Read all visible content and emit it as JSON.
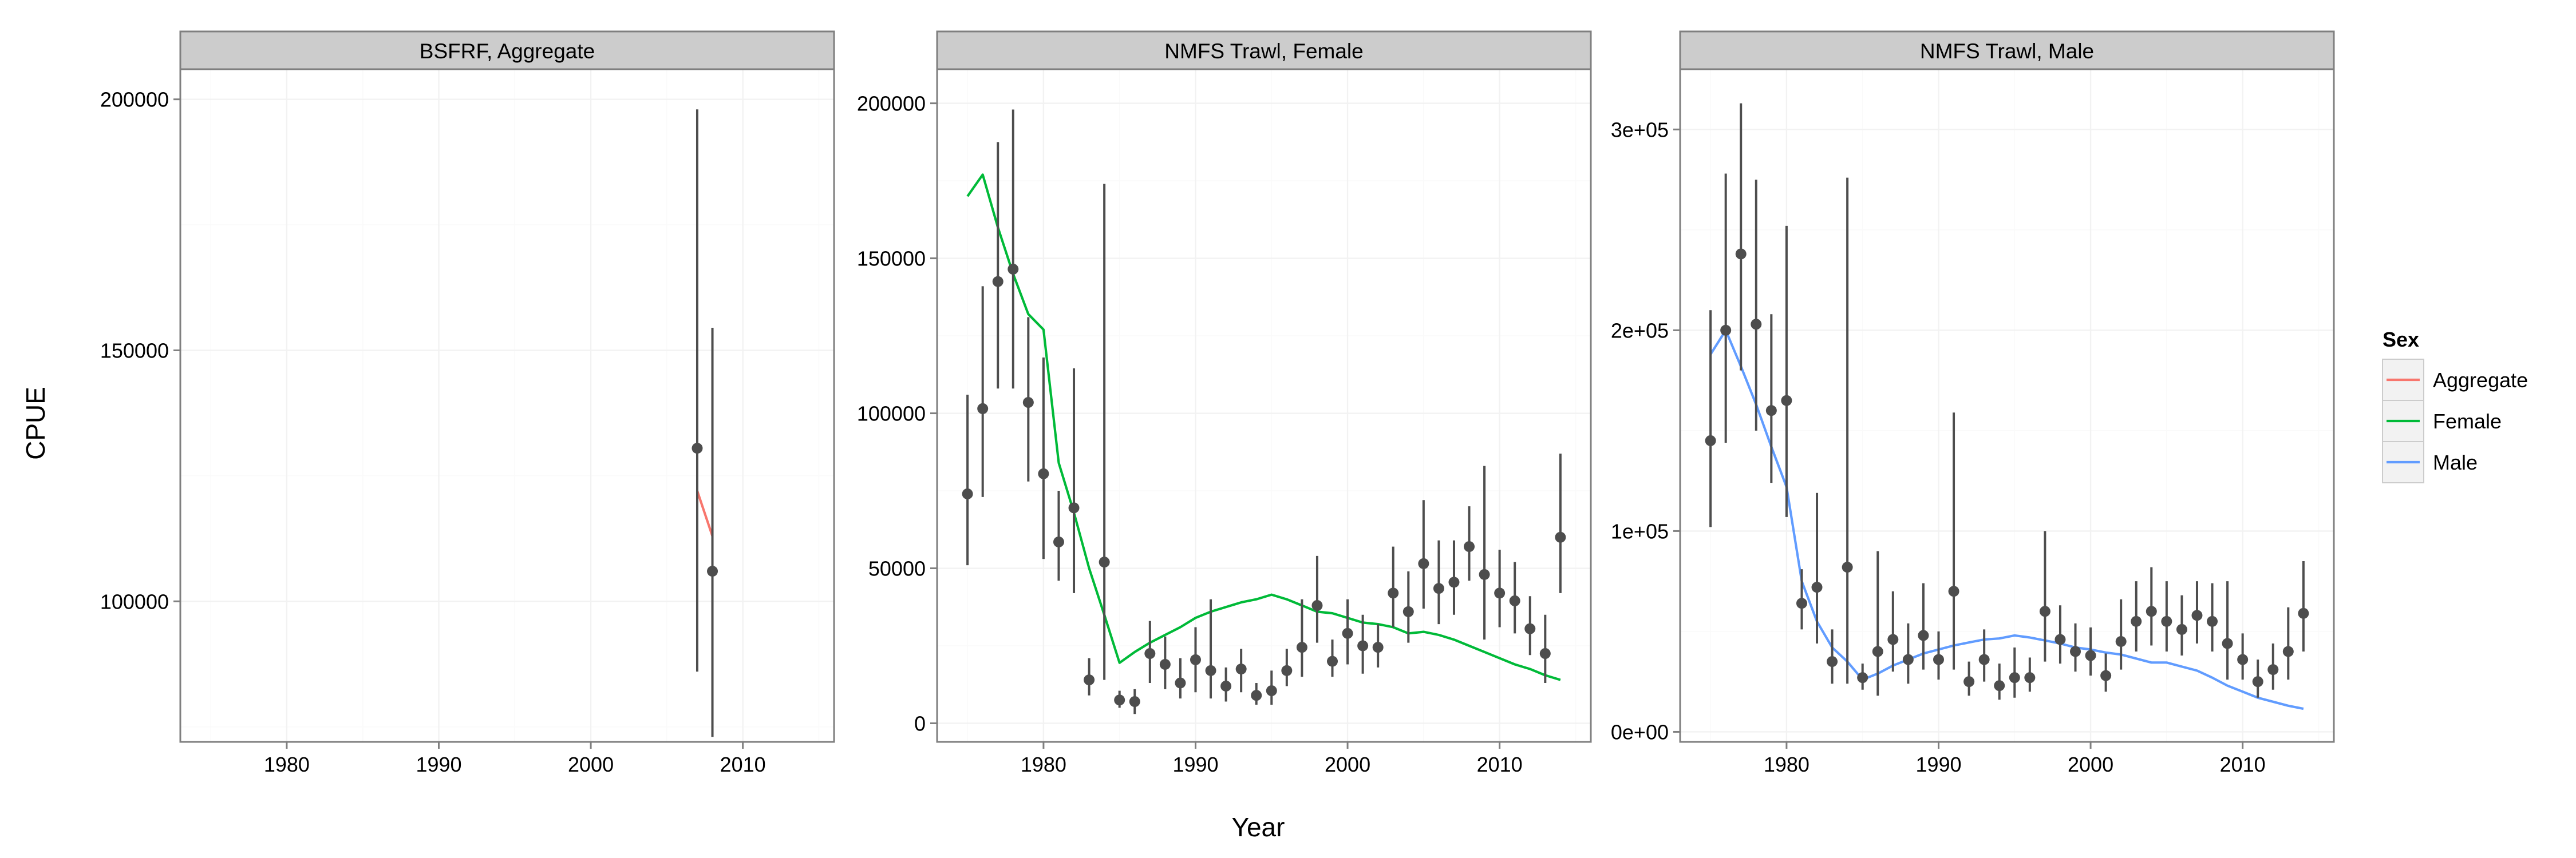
{
  "chart_data": {
    "type": "line",
    "xlabel": "Year",
    "ylabel": "CPUE",
    "legend": {
      "title": "Sex",
      "placement": "right",
      "entries": [
        {
          "name": "Aggregate",
          "color": "#F8766D"
        },
        {
          "name": "Female",
          "color": "#00BA38"
        },
        {
          "name": "Male",
          "color": "#619CFF"
        }
      ]
    },
    "facets": [
      {
        "strip": "BSFRF, Aggregate",
        "line_color": "#F8766D",
        "xlim": [
          1973,
          2016
        ],
        "ylim": [
          72000,
          206000
        ],
        "x_ticks": [
          1980,
          1990,
          2000,
          2010
        ],
        "x_tick_labels": [
          "1980",
          "1990",
          "2000",
          "2010"
        ],
        "y_ticks": [
          100000,
          150000,
          200000
        ],
        "y_tick_labels": [
          "100000",
          "150000",
          "200000"
        ],
        "observed": [
          {
            "x": 2007,
            "y": 130500,
            "lo": 86000,
            "hi": 198000
          },
          {
            "x": 2008,
            "y": 106000,
            "lo": 73000,
            "hi": 154500
          }
        ],
        "predicted": [
          {
            "x": 2007,
            "y": 122000
          },
          {
            "x": 2008,
            "y": 113000
          }
        ]
      },
      {
        "strip": "NMFS Trawl, Female",
        "line_color": "#00BA38",
        "xlim": [
          1973,
          2016
        ],
        "ylim": [
          -6000,
          211000
        ],
        "x_ticks": [
          1980,
          1990,
          2000,
          2010
        ],
        "x_tick_labels": [
          "1980",
          "1990",
          "2000",
          "2010"
        ],
        "y_ticks": [
          0,
          50000,
          100000,
          150000,
          200000
        ],
        "y_tick_labels": [
          "0",
          "50000",
          "100000",
          "150000",
          "200000"
        ],
        "observed": [
          {
            "x": 1975,
            "y": 74000,
            "lo": 51000,
            "hi": 106000
          },
          {
            "x": 1976,
            "y": 101500,
            "lo": 73000,
            "hi": 141000
          },
          {
            "x": 1977,
            "y": 142500,
            "lo": 108000,
            "hi": 187500
          },
          {
            "x": 1978,
            "y": 146500,
            "lo": 108000,
            "hi": 198000
          },
          {
            "x": 1979,
            "y": 103500,
            "lo": 78000,
            "hi": 131000
          },
          {
            "x": 1980,
            "y": 80500,
            "lo": 53000,
            "hi": 118000
          },
          {
            "x": 1981,
            "y": 58500,
            "lo": 46000,
            "hi": 75000
          },
          {
            "x": 1982,
            "y": 69500,
            "lo": 42000,
            "hi": 114500
          },
          {
            "x": 1983,
            "y": 14000,
            "lo": 9000,
            "hi": 21000
          },
          {
            "x": 1984,
            "y": 52000,
            "lo": 14000,
            "hi": 174000
          },
          {
            "x": 1985,
            "y": 7500,
            "lo": 5000,
            "hi": 10500
          },
          {
            "x": 1986,
            "y": 7000,
            "lo": 3000,
            "hi": 11000
          },
          {
            "x": 1987,
            "y": 22500,
            "lo": 13000,
            "hi": 33000
          },
          {
            "x": 1988,
            "y": 19000,
            "lo": 11000,
            "hi": 28000
          },
          {
            "x": 1989,
            "y": 13000,
            "lo": 8000,
            "hi": 21000
          },
          {
            "x": 1990,
            "y": 20500,
            "lo": 10000,
            "hi": 31000
          },
          {
            "x": 1991,
            "y": 17000,
            "lo": 8000,
            "hi": 40000
          },
          {
            "x": 1992,
            "y": 12000,
            "lo": 7000,
            "hi": 18000
          },
          {
            "x": 1993,
            "y": 17500,
            "lo": 10000,
            "hi": 24000
          },
          {
            "x": 1994,
            "y": 9000,
            "lo": 6000,
            "hi": 13000
          },
          {
            "x": 1995,
            "y": 10500,
            "lo": 6000,
            "hi": 17000
          },
          {
            "x": 1996,
            "y": 17000,
            "lo": 12000,
            "hi": 24000
          },
          {
            "x": 1997,
            "y": 24500,
            "lo": 15000,
            "hi": 40000
          },
          {
            "x": 1998,
            "y": 38000,
            "lo": 26000,
            "hi": 54000
          },
          {
            "x": 1999,
            "y": 20000,
            "lo": 15000,
            "hi": 27000
          },
          {
            "x": 2000,
            "y": 29000,
            "lo": 19000,
            "hi": 40000
          },
          {
            "x": 2001,
            "y": 25000,
            "lo": 16000,
            "hi": 35000
          },
          {
            "x": 2002,
            "y": 24500,
            "lo": 18000,
            "hi": 32000
          },
          {
            "x": 2003,
            "y": 42000,
            "lo": 31000,
            "hi": 57000
          },
          {
            "x": 2004,
            "y": 36000,
            "lo": 26000,
            "hi": 49000
          },
          {
            "x": 2005,
            "y": 51500,
            "lo": 37000,
            "hi": 72000
          },
          {
            "x": 2006,
            "y": 43500,
            "lo": 32000,
            "hi": 59000
          },
          {
            "x": 2007,
            "y": 45500,
            "lo": 35000,
            "hi": 59000
          },
          {
            "x": 2008,
            "y": 57000,
            "lo": 46000,
            "hi": 70000
          },
          {
            "x": 2009,
            "y": 48000,
            "lo": 27000,
            "hi": 83000
          },
          {
            "x": 2010,
            "y": 42000,
            "lo": 31000,
            "hi": 56000
          },
          {
            "x": 2011,
            "y": 39500,
            "lo": 29000,
            "hi": 52000
          },
          {
            "x": 2012,
            "y": 30500,
            "lo": 22000,
            "hi": 41000
          },
          {
            "x": 2013,
            "y": 22500,
            "lo": 13000,
            "hi": 35000
          },
          {
            "x": 2014,
            "y": 60000,
            "lo": 42000,
            "hi": 87000
          }
        ],
        "predicted": [
          {
            "x": 1975,
            "y": 170000
          },
          {
            "x": 1976,
            "y": 177000
          },
          {
            "x": 1977,
            "y": 160000
          },
          {
            "x": 1978,
            "y": 145000
          },
          {
            "x": 1979,
            "y": 132000
          },
          {
            "x": 1980,
            "y": 127000
          },
          {
            "x": 1981,
            "y": 84000
          },
          {
            "x": 1982,
            "y": 68000
          },
          {
            "x": 1983,
            "y": 50000
          },
          {
            "x": 1984,
            "y": 35000
          },
          {
            "x": 1985,
            "y": 19500
          },
          {
            "x": 1986,
            "y": 23000
          },
          {
            "x": 1987,
            "y": 26000
          },
          {
            "x": 1988,
            "y": 28500
          },
          {
            "x": 1989,
            "y": 31000
          },
          {
            "x": 1990,
            "y": 34000
          },
          {
            "x": 1991,
            "y": 36000
          },
          {
            "x": 1992,
            "y": 37500
          },
          {
            "x": 1993,
            "y": 39000
          },
          {
            "x": 1994,
            "y": 40000
          },
          {
            "x": 1995,
            "y": 41500
          },
          {
            "x": 1996,
            "y": 40000
          },
          {
            "x": 1997,
            "y": 38000
          },
          {
            "x": 1998,
            "y": 36000
          },
          {
            "x": 1999,
            "y": 35500
          },
          {
            "x": 2000,
            "y": 34000
          },
          {
            "x": 2001,
            "y": 32500
          },
          {
            "x": 2002,
            "y": 32000
          },
          {
            "x": 2003,
            "y": 31000
          },
          {
            "x": 2004,
            "y": 29000
          },
          {
            "x": 2005,
            "y": 29500
          },
          {
            "x": 2006,
            "y": 28500
          },
          {
            "x": 2007,
            "y": 27000
          },
          {
            "x": 2008,
            "y": 25000
          },
          {
            "x": 2009,
            "y": 23000
          },
          {
            "x": 2010,
            "y": 21000
          },
          {
            "x": 2011,
            "y": 19000
          },
          {
            "x": 2012,
            "y": 17500
          },
          {
            "x": 2013,
            "y": 15500
          },
          {
            "x": 2014,
            "y": 14000
          }
        ]
      },
      {
        "strip": "NMFS Trawl, Male",
        "line_color": "#619CFF",
        "xlim": [
          1973,
          2016
        ],
        "ylim": [
          -5000,
          330000
        ],
        "x_ticks": [
          1980,
          1990,
          2000,
          2010
        ],
        "x_tick_labels": [
          "1980",
          "1990",
          "2000",
          "2010"
        ],
        "y_ticks": [
          0,
          100000,
          200000,
          300000
        ],
        "y_tick_labels": [
          "0e+00",
          "1e+05",
          "2e+05",
          "3e+05"
        ],
        "observed": [
          {
            "x": 1975,
            "y": 145000,
            "lo": 102000,
            "hi": 210000
          },
          {
            "x": 1976,
            "y": 200000,
            "lo": 144000,
            "hi": 278000
          },
          {
            "x": 1977,
            "y": 238000,
            "lo": 180000,
            "hi": 313000
          },
          {
            "x": 1978,
            "y": 203000,
            "lo": 150000,
            "hi": 275000
          },
          {
            "x": 1979,
            "y": 160000,
            "lo": 124000,
            "hi": 208000
          },
          {
            "x": 1980,
            "y": 165000,
            "lo": 107000,
            "hi": 252000
          },
          {
            "x": 1981,
            "y": 64000,
            "lo": 51000,
            "hi": 81000
          },
          {
            "x": 1982,
            "y": 72000,
            "lo": 44000,
            "hi": 119000
          },
          {
            "x": 1983,
            "y": 35000,
            "lo": 24000,
            "hi": 51000
          },
          {
            "x": 1984,
            "y": 82000,
            "lo": 24000,
            "hi": 276000
          },
          {
            "x": 1985,
            "y": 27000,
            "lo": 21000,
            "hi": 34000
          },
          {
            "x": 1986,
            "y": 40000,
            "lo": 18000,
            "hi": 90000
          },
          {
            "x": 1987,
            "y": 46000,
            "lo": 30000,
            "hi": 70000
          },
          {
            "x": 1988,
            "y": 36000,
            "lo": 24000,
            "hi": 54000
          },
          {
            "x": 1989,
            "y": 48000,
            "lo": 31000,
            "hi": 74000
          },
          {
            "x": 1990,
            "y": 36000,
            "lo": 26000,
            "hi": 50000
          },
          {
            "x": 1991,
            "y": 70000,
            "lo": 31000,
            "hi": 159000
          },
          {
            "x": 1992,
            "y": 25000,
            "lo": 18000,
            "hi": 35000
          },
          {
            "x": 1993,
            "y": 36000,
            "lo": 25000,
            "hi": 51000
          },
          {
            "x": 1994,
            "y": 23000,
            "lo": 16000,
            "hi": 34000
          },
          {
            "x": 1995,
            "y": 27000,
            "lo": 17000,
            "hi": 42000
          },
          {
            "x": 1996,
            "y": 27000,
            "lo": 20000,
            "hi": 37000
          },
          {
            "x": 1997,
            "y": 60000,
            "lo": 35000,
            "hi": 100000
          },
          {
            "x": 1998,
            "y": 46000,
            "lo": 34000,
            "hi": 63000
          },
          {
            "x": 1999,
            "y": 40000,
            "lo": 30000,
            "hi": 54000
          },
          {
            "x": 2000,
            "y": 38000,
            "lo": 28000,
            "hi": 52000
          },
          {
            "x": 2001,
            "y": 28000,
            "lo": 20000,
            "hi": 39000
          },
          {
            "x": 2002,
            "y": 45000,
            "lo": 31000,
            "hi": 66000
          },
          {
            "x": 2003,
            "y": 55000,
            "lo": 40000,
            "hi": 75000
          },
          {
            "x": 2004,
            "y": 60000,
            "lo": 43000,
            "hi": 82000
          },
          {
            "x": 2005,
            "y": 55000,
            "lo": 40000,
            "hi": 75000
          },
          {
            "x": 2006,
            "y": 51000,
            "lo": 38000,
            "hi": 68000
          },
          {
            "x": 2007,
            "y": 58000,
            "lo": 44000,
            "hi": 75000
          },
          {
            "x": 2008,
            "y": 55000,
            "lo": 40000,
            "hi": 74000
          },
          {
            "x": 2009,
            "y": 44000,
            "lo": 26000,
            "hi": 75000
          },
          {
            "x": 2010,
            "y": 36000,
            "lo": 26000,
            "hi": 49000
          },
          {
            "x": 2011,
            "y": 25000,
            "lo": 17000,
            "hi": 36000
          },
          {
            "x": 2012,
            "y": 31000,
            "lo": 21000,
            "hi": 44000
          },
          {
            "x": 2013,
            "y": 40000,
            "lo": 26000,
            "hi": 62000
          },
          {
            "x": 2014,
            "y": 59000,
            "lo": 40000,
            "hi": 85000
          }
        ],
        "predicted": [
          {
            "x": 1975,
            "y": 188000
          },
          {
            "x": 1976,
            "y": 200000
          },
          {
            "x": 1977,
            "y": 182000
          },
          {
            "x": 1978,
            "y": 163000
          },
          {
            "x": 1979,
            "y": 142000
          },
          {
            "x": 1980,
            "y": 122000
          },
          {
            "x": 1981,
            "y": 75000
          },
          {
            "x": 1982,
            "y": 55000
          },
          {
            "x": 1983,
            "y": 42000
          },
          {
            "x": 1984,
            "y": 35000
          },
          {
            "x": 1985,
            "y": 26000
          },
          {
            "x": 1986,
            "y": 29000
          },
          {
            "x": 1987,
            "y": 33000
          },
          {
            "x": 1988,
            "y": 36000
          },
          {
            "x": 1989,
            "y": 39000
          },
          {
            "x": 1990,
            "y": 41000
          },
          {
            "x": 1991,
            "y": 43000
          },
          {
            "x": 1992,
            "y": 44500
          },
          {
            "x": 1993,
            "y": 46000
          },
          {
            "x": 1994,
            "y": 46500
          },
          {
            "x": 1995,
            "y": 48000
          },
          {
            "x": 1996,
            "y": 47000
          },
          {
            "x": 1997,
            "y": 45500
          },
          {
            "x": 1998,
            "y": 44000
          },
          {
            "x": 1999,
            "y": 42000
          },
          {
            "x": 2000,
            "y": 41000
          },
          {
            "x": 2001,
            "y": 39500
          },
          {
            "x": 2002,
            "y": 38500
          },
          {
            "x": 2003,
            "y": 36500
          },
          {
            "x": 2004,
            "y": 34500
          },
          {
            "x": 2005,
            "y": 34500
          },
          {
            "x": 2006,
            "y": 32500
          },
          {
            "x": 2007,
            "y": 30500
          },
          {
            "x": 2008,
            "y": 27000
          },
          {
            "x": 2009,
            "y": 23000
          },
          {
            "x": 2010,
            "y": 20000
          },
          {
            "x": 2011,
            "y": 17000
          },
          {
            "x": 2012,
            "y": 15000
          },
          {
            "x": 2013,
            "y": 13000
          },
          {
            "x": 2014,
            "y": 11500
          }
        ]
      }
    ]
  }
}
